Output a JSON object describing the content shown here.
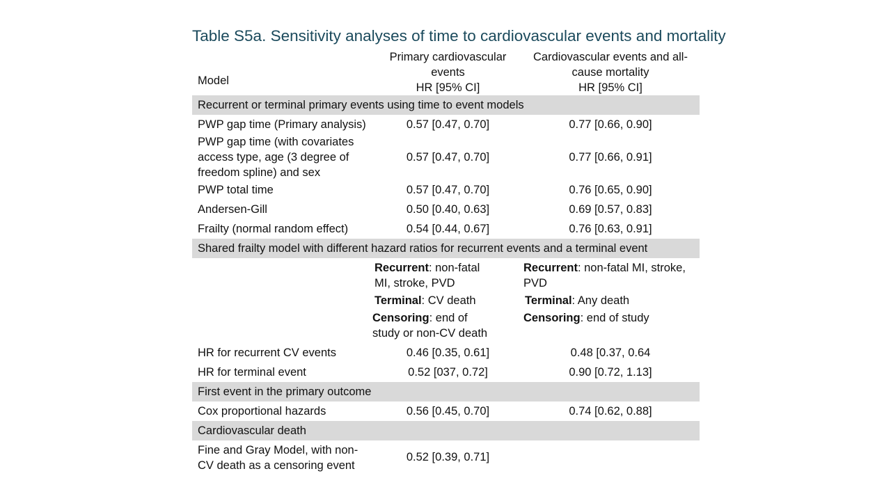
{
  "title": "Table S5a. Sensitivity analyses of time to cardiovascular events and mortality",
  "header": {
    "model": "Model",
    "col1": [
      "Primary cardiovascular",
      "events",
      "HR [95% CI]"
    ],
    "col2": [
      "Cardiovascular events and all-",
      "cause mortality",
      "HR [95% CI]"
    ]
  },
  "sections": {
    "s1": "Recurrent or terminal primary events using time to event models",
    "s2": "Shared frailty model with different hazard ratios for recurrent events and a terminal event",
    "s3": "First event in the primary outcome",
    "s4": "Cardiovascular death"
  },
  "rows": {
    "pwp_gap": {
      "label": "PWP gap time (Primary analysis)",
      "v1": "0.57 [0.47, 0.70]",
      "v2": "0.77 [0.66, 0.90]"
    },
    "pwp_gap_cov": {
      "label": [
        "PWP gap time (with covariates",
        "access type, age (3 degree of",
        "freedom spline) and sex"
      ],
      "v1": "0.57 [0.47, 0.70]",
      "v2": "0.77 [0.66, 0.91]"
    },
    "pwp_total": {
      "label": "PWP total time",
      "v1": "0.57 [0.47, 0.70]",
      "v2": "0.76 [0.65, 0.90]"
    },
    "andersen": {
      "label": "Andersen-Gill",
      "v1": "0.50 [0.40, 0.63]",
      "v2": "0.69 [0.57, 0.83]"
    },
    "frailty": {
      "label": "Frailty (normal random effect)",
      "v1": "0.54 [0.44, 0.67]",
      "v2": "0.76 [0.63, 0.91]"
    },
    "hr_recurrent": {
      "label": "HR for recurrent CV events",
      "v1": "0.46 [0.35, 0.61]",
      "v2": "0.48 [0.37, 0.64"
    },
    "hr_terminal": {
      "label": "HR for terminal event",
      "v1": "0.52 [037, 0.72]",
      "v2": "0.90 [0.72, 1.13]"
    },
    "cox": {
      "label": "Cox proportional hazards",
      "v1": "0.56 [0.45, 0.70]",
      "v2": "0.74 [0.62, 0.88]"
    },
    "fine_gray": {
      "label": [
        "Fine and Gray Model, with non-",
        "CV death as a censoring event"
      ],
      "v1": "0.52 [0.39, 0.71]",
      "v2": ""
    }
  },
  "spec": {
    "recurrent_label": "Recurrent",
    "terminal_label": "Terminal",
    "censoring_label": "Censoring",
    "col1": {
      "recurrent": [
        ": non-fatal",
        "MI, stroke, PVD"
      ],
      "terminal": ": CV death",
      "censoring": [
        ": end of",
        "study or non-CV death"
      ]
    },
    "col2": {
      "recurrent": [
        ": non-fatal MI, stroke,",
        "PVD"
      ],
      "terminal": ": Any death",
      "censoring": ": end of study"
    }
  }
}
